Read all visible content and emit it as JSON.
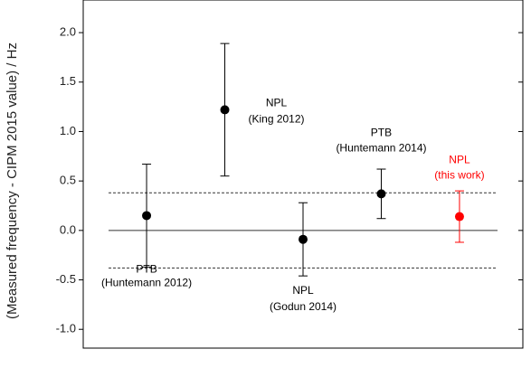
{
  "chart_data": {
    "type": "scatter",
    "y_label": "(Measured frequency - CIPM 2015 value) / Hz",
    "x": [
      1,
      2,
      3,
      4,
      5
    ],
    "values": [
      0.15,
      1.22,
      -0.09,
      0.37,
      0.14
    ],
    "errors": [
      0.52,
      0.67,
      0.37,
      0.25,
      0.26
    ],
    "colors": [
      "#000000",
      "#000000",
      "#000000",
      "#000000",
      "#ff0000"
    ],
    "annotations": [
      {
        "lines": [
          "PTB",
          "(Huntemann 2012)"
        ]
      },
      {
        "lines": [
          "NPL",
          "(King 2012)"
        ]
      },
      {
        "lines": [
          "NPL",
          "(Godun 2014)"
        ]
      },
      {
        "lines": [
          "PTB",
          "(Huntemann 2014)"
        ]
      },
      {
        "lines": [
          "NPL",
          "(this work)"
        ]
      }
    ],
    "hlines": [
      {
        "value": 0,
        "style": "solid"
      },
      {
        "value": 0.38,
        "style": "dashed"
      },
      {
        "value": -0.38,
        "style": "dashed"
      }
    ],
    "xlim": [
      0.19,
      5.81
    ],
    "ylim": [
      -1.19,
      2.33
    ],
    "yticks": [
      {
        "value": -1,
        "label": "-1.0"
      },
      -0.5,
      {
        "value": 0,
        "label": "0.0"
      },
      0.5,
      {
        "value": 1,
        "label": "1.0"
      },
      1.5,
      {
        "value": 2,
        "label": "2.0"
      }
    ]
  }
}
